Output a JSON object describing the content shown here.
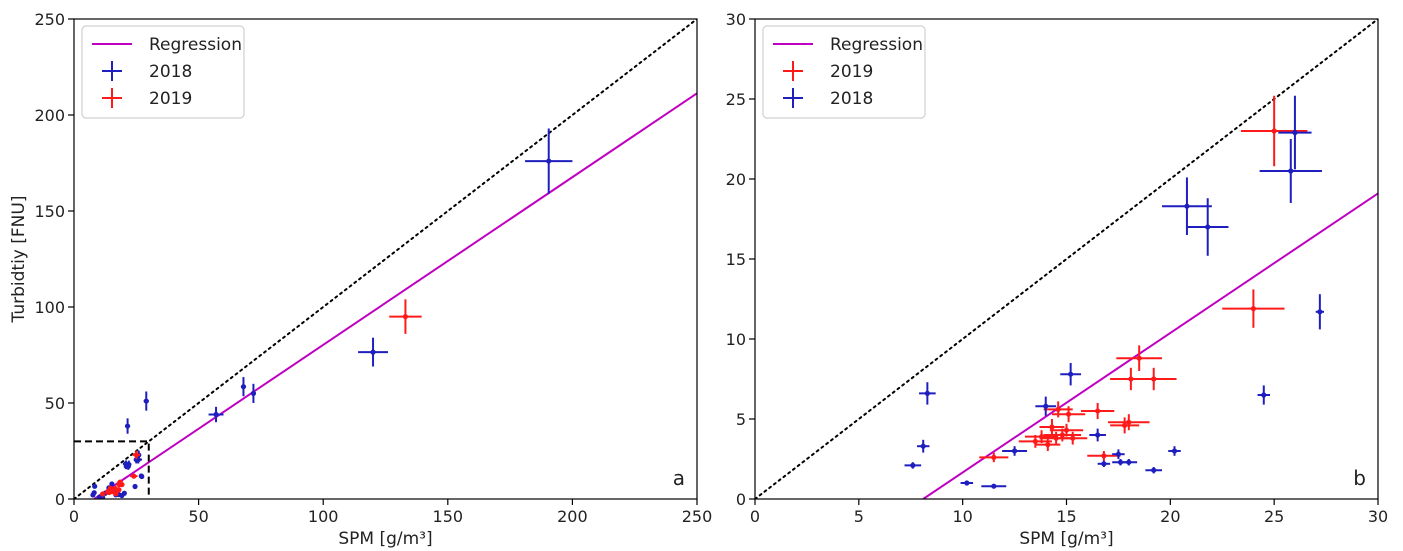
{
  "chart_data": [
    {
      "type": "scatter",
      "panel_label": "a",
      "xlabel": "SPM [g/m³]",
      "ylabel": "Turbidtiy [FNU]",
      "xlim": [
        0,
        250
      ],
      "ylim": [
        0,
        250
      ],
      "xticks": [
        0,
        50,
        100,
        150,
        200,
        250
      ],
      "yticks": [
        0,
        50,
        100,
        150,
        200,
        250
      ],
      "grid": false,
      "legend_position": "top-left",
      "legend": [
        "Regression",
        "2018",
        "2019"
      ],
      "one_to_one_line": {
        "style": "dotted",
        "color": "#000000",
        "from": [
          0,
          0
        ],
        "to": [
          250,
          250
        ]
      },
      "inset_box": {
        "style": "dashed",
        "color": "#000000",
        "x": [
          0,
          30
        ],
        "y": [
          0,
          30
        ]
      },
      "regression": {
        "name": "Regression",
        "color": "#c000c0",
        "from": [
          8.1,
          0
        ],
        "to": [
          250,
          211.3
        ]
      },
      "series": [
        {
          "name": "2018",
          "color": "#1f1fbf",
          "points": [
            {
              "x": 190.5,
              "y": 176,
              "xerr": 9.5,
              "yerr": 17
            },
            {
              "x": 120,
              "y": 76.5,
              "xerr": 6,
              "yerr": 7.5
            },
            {
              "x": 57,
              "y": 44,
              "xerr": 3,
              "yerr": 4
            },
            {
              "x": 68,
              "y": 58.5,
              "xerr": 1,
              "yerr": 5
            },
            {
              "x": 72,
              "y": 55,
              "xerr": 1,
              "yerr": 5
            },
            {
              "x": 29,
              "y": 51,
              "xerr": 1,
              "yerr": 5
            },
            {
              "x": 21.5,
              "y": 38,
              "xerr": 1,
              "yerr": 4
            },
            {
              "x": 22,
              "y": 18,
              "xerr": 1,
              "yerr": 2
            },
            {
              "x": 21,
              "y": 17,
              "xerr": 1,
              "yerr": 1.5
            },
            {
              "x": 25,
              "y": 20.5,
              "xerr": 1,
              "yerr": 2
            },
            {
              "x": 27,
              "y": 12,
              "xerr": 0.5,
              "yerr": 1
            },
            {
              "x": 24.5,
              "y": 6.5,
              "xerr": 0.5,
              "yerr": 0.8
            },
            {
              "x": 20.2,
              "y": 3,
              "xerr": 0.3,
              "yerr": 0.5
            },
            {
              "x": 19.2,
              "y": 1.8,
              "xerr": 0.5,
              "yerr": 0.3
            },
            {
              "x": 18,
              "y": 2.3,
              "xerr": 0.3,
              "yerr": 0.3
            },
            {
              "x": 17.5,
              "y": 2.8,
              "xerr": 0.3,
              "yerr": 0.3
            },
            {
              "x": 16.8,
              "y": 2.2,
              "xerr": 0.3,
              "yerr": 0.3
            },
            {
              "x": 16.5,
              "y": 4,
              "xerr": 0.3,
              "yerr": 0.5
            },
            {
              "x": 15.2,
              "y": 7.8,
              "xerr": 0.5,
              "yerr": 0.8
            },
            {
              "x": 14,
              "y": 5.8,
              "xerr": 0.5,
              "yerr": 0.6
            },
            {
              "x": 12.5,
              "y": 3,
              "xerr": 0.5,
              "yerr": 0.3
            },
            {
              "x": 11.5,
              "y": 0.8,
              "xerr": 0.6,
              "yerr": 0.2
            },
            {
              "x": 10.2,
              "y": 1,
              "xerr": 0.3,
              "yerr": 0.2
            },
            {
              "x": 8.3,
              "y": 6.6,
              "xerr": 0.3,
              "yerr": 0.8
            },
            {
              "x": 8.1,
              "y": 3.3,
              "xerr": 0.3,
              "yerr": 0.4
            },
            {
              "x": 7.6,
              "y": 2.1,
              "xerr": 0.4,
              "yerr": 0.3
            },
            {
              "x": 21.8,
              "y": 17,
              "xerr": 1,
              "yerr": 1.8
            },
            {
              "x": 20.8,
              "y": 18.3,
              "xerr": 1.2,
              "yerr": 1.8
            },
            {
              "x": 25.8,
              "y": 20.5,
              "xerr": 1.5,
              "yerr": 2
            },
            {
              "x": 26,
              "y": 22.9,
              "xerr": 0.8,
              "yerr": 2.3
            },
            {
              "x": 27.2,
              "y": 11.7,
              "xerr": 0.2,
              "yerr": 1.1
            }
          ]
        },
        {
          "name": "2019",
          "color": "#ff1a1a",
          "points": [
            {
              "x": 133,
              "y": 95,
              "xerr": 6.5,
              "yerr": 9
            },
            {
              "x": 24,
              "y": 11.9,
              "xerr": 1.5,
              "yerr": 1.2
            },
            {
              "x": 25,
              "y": 23,
              "xerr": 1.5,
              "yerr": 2.2
            },
            {
              "x": 18.5,
              "y": 8.8,
              "xerr": 1.1,
              "yerr": 0.8
            },
            {
              "x": 18.1,
              "y": 7.5,
              "xerr": 1.0,
              "yerr": 0.7
            },
            {
              "x": 19.2,
              "y": 7.5,
              "xerr": 1.1,
              "yerr": 0.7
            },
            {
              "x": 18,
              "y": 4.8,
              "xerr": 1.0,
              "yerr": 0.5
            },
            {
              "x": 17.8,
              "y": 4.6,
              "xerr": 0.7,
              "yerr": 0.5
            },
            {
              "x": 16.5,
              "y": 5.5,
              "xerr": 0.8,
              "yerr": 0.5
            },
            {
              "x": 15.1,
              "y": 5.3,
              "xerr": 0.8,
              "yerr": 0.5
            },
            {
              "x": 14.6,
              "y": 5.6,
              "xerr": 0.7,
              "yerr": 0.5
            },
            {
              "x": 14.3,
              "y": 4.5,
              "xerr": 0.6,
              "yerr": 0.5
            },
            {
              "x": 15,
              "y": 4.3,
              "xerr": 0.8,
              "yerr": 0.4
            },
            {
              "x": 14.8,
              "y": 4,
              "xerr": 0.9,
              "yerr": 0.4
            },
            {
              "x": 14.5,
              "y": 3.8,
              "xerr": 0.8,
              "yerr": 0.4
            },
            {
              "x": 13.8,
              "y": 3.9,
              "xerr": 0.8,
              "yerr": 0.4
            },
            {
              "x": 13.5,
              "y": 3.6,
              "xerr": 0.8,
              "yerr": 0.4
            },
            {
              "x": 14.1,
              "y": 3.4,
              "xerr": 0.6,
              "yerr": 0.4
            },
            {
              "x": 15.3,
              "y": 3.8,
              "xerr": 0.7,
              "yerr": 0.4
            },
            {
              "x": 16.8,
              "y": 2.7,
              "xerr": 0.8,
              "yerr": 0.3
            },
            {
              "x": 11.5,
              "y": 2.6,
              "xerr": 0.7,
              "yerr": 0.3
            }
          ]
        }
      ]
    },
    {
      "type": "scatter",
      "panel_label": "b",
      "xlabel": "SPM [g/m³]",
      "ylabel": "",
      "xlim": [
        0,
        30
      ],
      "ylim": [
        0,
        30
      ],
      "xticks": [
        0,
        5,
        10,
        15,
        20,
        25,
        30
      ],
      "yticks": [
        0,
        5,
        10,
        15,
        20,
        25,
        30
      ],
      "grid": false,
      "legend_position": "top-left",
      "legend": [
        "Regression",
        "2019",
        "2018"
      ],
      "one_to_one_line": {
        "style": "dotted",
        "color": "#000000",
        "from": [
          0,
          0
        ],
        "to": [
          30,
          30
        ]
      },
      "regression": {
        "name": "Regression",
        "color": "#c000c0",
        "from": [
          8.1,
          0
        ],
        "to": [
          30,
          19.1
        ]
      },
      "series": [
        {
          "name": "2019",
          "color": "#ff1a1a",
          "points": [
            {
              "x": 25,
              "y": 23,
              "xerr": 1.6,
              "yerr": 2.2
            },
            {
              "x": 24,
              "y": 11.9,
              "xerr": 1.5,
              "yerr": 1.2
            },
            {
              "x": 18.5,
              "y": 8.8,
              "xerr": 1.1,
              "yerr": 0.8
            },
            {
              "x": 18.1,
              "y": 7.5,
              "xerr": 1.0,
              "yerr": 0.7
            },
            {
              "x": 19.2,
              "y": 7.5,
              "xerr": 1.1,
              "yerr": 0.7
            },
            {
              "x": 18,
              "y": 4.8,
              "xerr": 1.0,
              "yerr": 0.5
            },
            {
              "x": 17.8,
              "y": 4.6,
              "xerr": 0.7,
              "yerr": 0.5
            },
            {
              "x": 16.5,
              "y": 5.5,
              "xerr": 0.8,
              "yerr": 0.5
            },
            {
              "x": 15.1,
              "y": 5.3,
              "xerr": 0.8,
              "yerr": 0.5
            },
            {
              "x": 14.6,
              "y": 5.6,
              "xerr": 0.7,
              "yerr": 0.5
            },
            {
              "x": 14.3,
              "y": 4.5,
              "xerr": 0.6,
              "yerr": 0.5
            },
            {
              "x": 15,
              "y": 4.3,
              "xerr": 0.8,
              "yerr": 0.4
            },
            {
              "x": 14.8,
              "y": 4,
              "xerr": 0.9,
              "yerr": 0.4
            },
            {
              "x": 14.5,
              "y": 3.8,
              "xerr": 0.8,
              "yerr": 0.4
            },
            {
              "x": 13.8,
              "y": 3.9,
              "xerr": 0.8,
              "yerr": 0.4
            },
            {
              "x": 13.5,
              "y": 3.6,
              "xerr": 0.8,
              "yerr": 0.4
            },
            {
              "x": 14.1,
              "y": 3.4,
              "xerr": 0.6,
              "yerr": 0.4
            },
            {
              "x": 15.3,
              "y": 3.8,
              "xerr": 0.7,
              "yerr": 0.4
            },
            {
              "x": 16.8,
              "y": 2.7,
              "xerr": 0.8,
              "yerr": 0.3
            },
            {
              "x": 11.5,
              "y": 2.6,
              "xerr": 0.7,
              "yerr": 0.3
            }
          ]
        },
        {
          "name": "2018",
          "color": "#1f1fbf",
          "points": [
            {
              "x": 26,
              "y": 22.9,
              "xerr": 0.8,
              "yerr": 2.3
            },
            {
              "x": 25.8,
              "y": 20.5,
              "xerr": 1.5,
              "yerr": 2.0
            },
            {
              "x": 20.8,
              "y": 18.3,
              "xerr": 1.2,
              "yerr": 1.8
            },
            {
              "x": 21.8,
              "y": 17,
              "xerr": 1.0,
              "yerr": 1.8
            },
            {
              "x": 27.2,
              "y": 11.7,
              "xerr": 0.2,
              "yerr": 1.1
            },
            {
              "x": 24.5,
              "y": 6.5,
              "xerr": 0.3,
              "yerr": 0.6
            },
            {
              "x": 20.2,
              "y": 3,
              "xerr": 0.3,
              "yerr": 0.3
            },
            {
              "x": 19.2,
              "y": 1.8,
              "xerr": 0.4,
              "yerr": 0.2
            },
            {
              "x": 18,
              "y": 2.3,
              "xerr": 0.4,
              "yerr": 0.2
            },
            {
              "x": 17.5,
              "y": 2.8,
              "xerr": 0.3,
              "yerr": 0.3
            },
            {
              "x": 16.8,
              "y": 2.2,
              "xerr": 0.3,
              "yerr": 0.2
            },
            {
              "x": 17.6,
              "y": 2.3,
              "xerr": 0.4,
              "yerr": 0.2
            },
            {
              "x": 16.5,
              "y": 4,
              "xerr": 0.4,
              "yerr": 0.4
            },
            {
              "x": 15.2,
              "y": 7.8,
              "xerr": 0.5,
              "yerr": 0.7
            },
            {
              "x": 14,
              "y": 5.8,
              "xerr": 0.5,
              "yerr": 0.6
            },
            {
              "x": 12.5,
              "y": 3,
              "xerr": 0.6,
              "yerr": 0.3
            },
            {
              "x": 11.5,
              "y": 0.8,
              "xerr": 0.6,
              "yerr": 0.1
            },
            {
              "x": 10.2,
              "y": 1,
              "xerr": 0.3,
              "yerr": 0.1
            },
            {
              "x": 8.3,
              "y": 6.6,
              "xerr": 0.4,
              "yerr": 0.7
            },
            {
              "x": 8.1,
              "y": 3.3,
              "xerr": 0.3,
              "yerr": 0.4
            },
            {
              "x": 7.6,
              "y": 2.1,
              "xerr": 0.4,
              "yerr": 0.2
            }
          ]
        }
      ]
    }
  ]
}
